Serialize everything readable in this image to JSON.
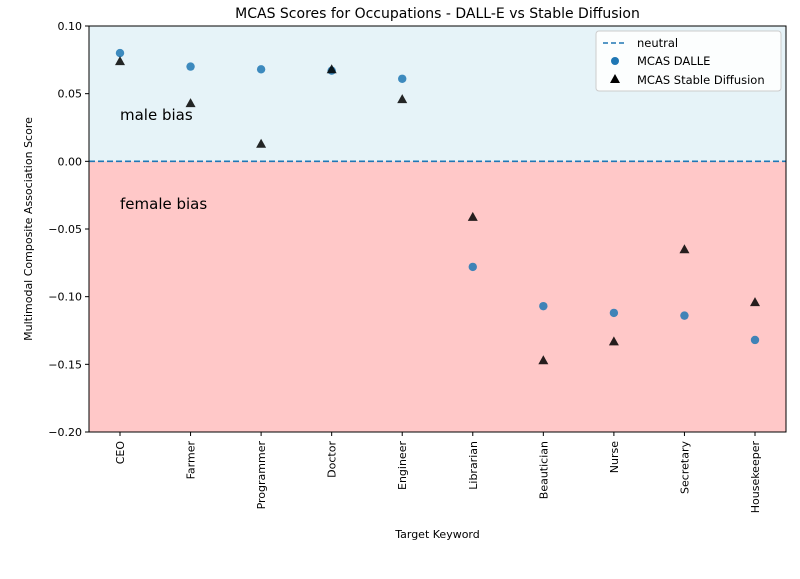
{
  "chart_data": {
    "type": "scatter",
    "title": "MCAS Scores for Occupations - DALL-E vs Stable Diffusion",
    "xlabel": "Target Keyword",
    "ylabel": "Multimodal Composite Association Score",
    "ylim": [
      -0.2,
      0.1
    ],
    "yticks": [
      -0.2,
      -0.15,
      -0.1,
      -0.05,
      0.0,
      0.05,
      0.1
    ],
    "ytick_labels": [
      "−0.20",
      "−0.15",
      "−0.10",
      "−0.05",
      "0.00",
      "0.05",
      "0.10"
    ],
    "categories": [
      "CEO",
      "Farmer",
      "Programmer",
      "Doctor",
      "Engineer",
      "Librarian",
      "Beautician",
      "Nurse",
      "Secretary",
      "Housekeeper"
    ],
    "series": [
      {
        "name": "MCAS DALLE",
        "marker": "circle",
        "color": "#1f77b4",
        "values": [
          0.08,
          0.07,
          0.068,
          0.067,
          0.061,
          -0.078,
          -0.107,
          -0.112,
          -0.114,
          -0.132
        ]
      },
      {
        "name": "MCAS Stable Diffusion",
        "marker": "triangle",
        "color": "#000000",
        "values": [
          0.074,
          0.043,
          0.013,
          0.068,
          0.046,
          -0.041,
          -0.147,
          -0.133,
          -0.065,
          -0.104
        ]
      }
    ],
    "reference_line": {
      "name": "neutral",
      "value": 0.0,
      "style": "dashed",
      "color": "#1f77b4"
    },
    "regions": [
      {
        "label": "male bias",
        "from": 0.0,
        "to": 0.1,
        "color": "#e6f3f8"
      },
      {
        "label": "female bias",
        "from": -0.2,
        "to": 0.0,
        "color": "#ffc8c8"
      }
    ],
    "legend": {
      "position": "top-right",
      "entries": [
        "neutral",
        "MCAS DALLE",
        "MCAS Stable Diffusion"
      ]
    }
  }
}
